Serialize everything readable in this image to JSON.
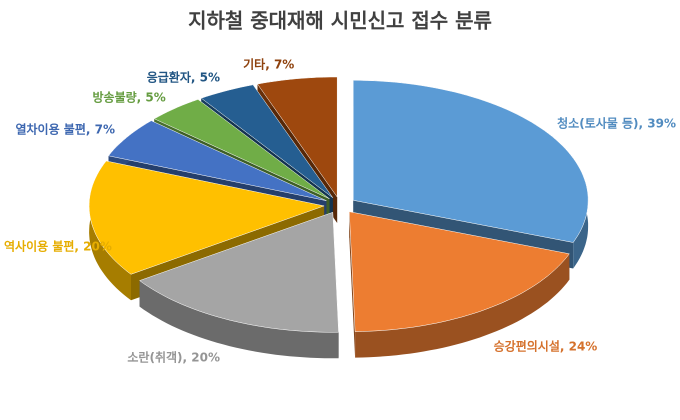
{
  "chart_data": {
    "type": "pie3d",
    "title": "지하철 중대재해 시민신고 접수 분류",
    "values": [
      39,
      24,
      20,
      20,
      7,
      5,
      5,
      7
    ],
    "value_labels": [
      "청소(토사물 등), 39%",
      "승강편의시설, 24%",
      "소란(취객), 20%",
      "역사이용 불편, 20%",
      "열차이용 불편, 7%",
      "방송불량, 5%",
      "응급환자, 5%",
      "기타, 7%"
    ],
    "colors": [
      "#5b9bd5",
      "#ed7d31",
      "#a5a5a5",
      "#ffc000",
      "#4472c4",
      "#70ad47",
      "#255e91",
      "#9e480e"
    ]
  }
}
